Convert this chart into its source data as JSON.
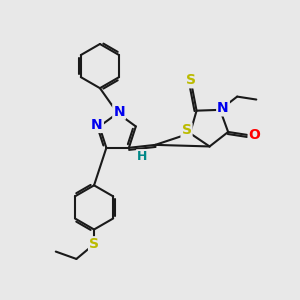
{
  "bg_color": "#e8e8e8",
  "bond_color": "#1a1a1a",
  "bond_width": 1.5,
  "dbo": 0.07,
  "atom_colors": {
    "N": "#0000ee",
    "S": "#bbbb00",
    "O": "#ff0000",
    "H": "#008888",
    "C": "#1a1a1a"
  },
  "font_size_atom": 10,
  "font_size_h": 9
}
